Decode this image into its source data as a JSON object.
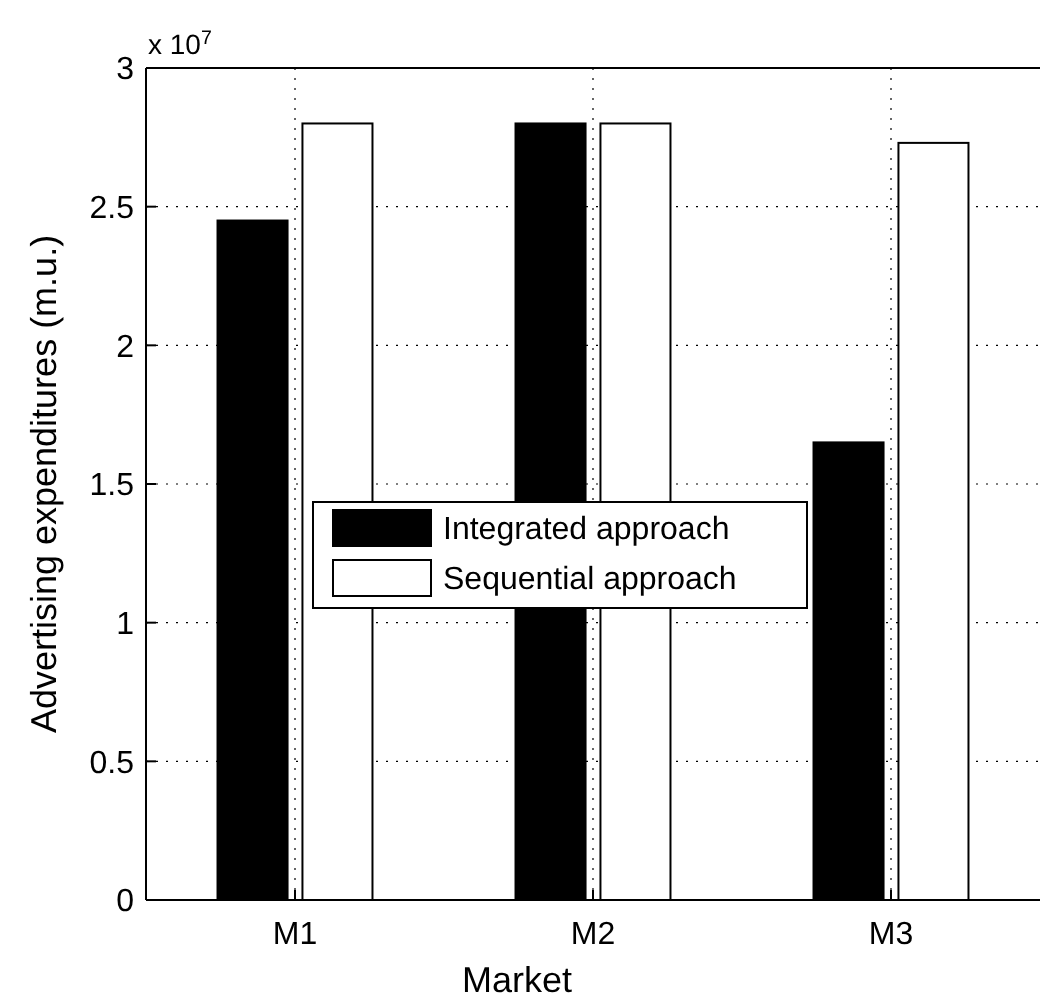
{
  "chart_data": {
    "type": "bar",
    "xlabel": "Market",
    "ylabel": "Advertising expenditures (m.u.)",
    "annotations": [
      "x 10$^{7}$"
    ],
    "categories": [
      "M1",
      "M2",
      "M3"
    ],
    "series": [
      {
        "name": "Integrated approach",
        "color": "#000000",
        "values": [
          2.45,
          2.8,
          1.65
        ]
      },
      {
        "name": "Sequential approach",
        "color": "#ffffff",
        "values": [
          2.8,
          2.8,
          2.73
        ]
      }
    ],
    "ylim": [
      0,
      3
    ],
    "yticks": [
      0,
      0.5,
      1,
      1.5,
      2,
      2.5,
      3
    ],
    "grid": true,
    "legend": "center"
  }
}
